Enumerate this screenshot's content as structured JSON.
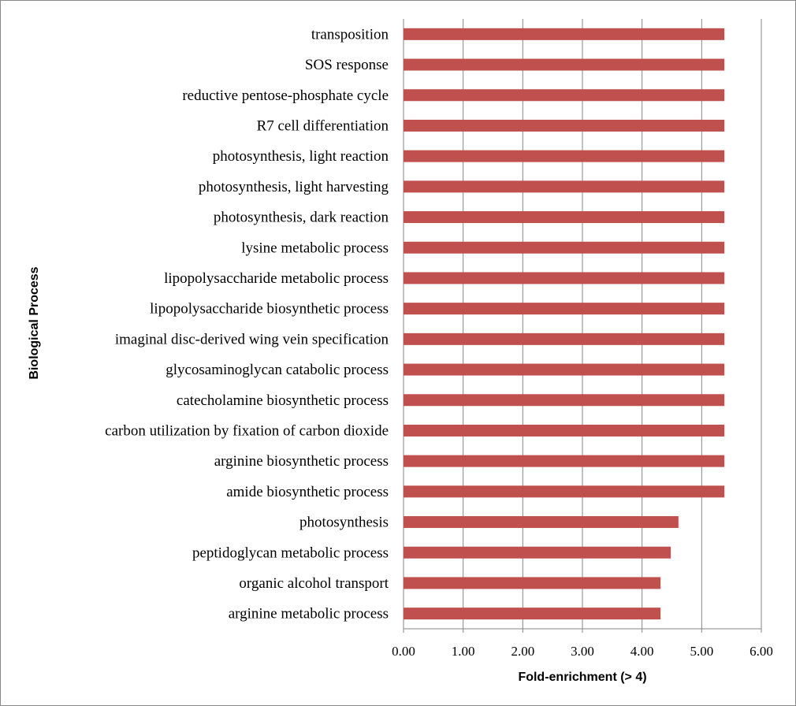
{
  "chart_data": {
    "type": "bar",
    "orientation": "horizontal",
    "categories": [
      "transposition",
      "SOS response",
      "reductive pentose-phosphate cycle",
      "R7 cell differentiation",
      "photosynthesis, light reaction",
      "photosynthesis, light harvesting",
      "photosynthesis, dark reaction",
      "lysine metabolic process",
      "lipopolysaccharide metabolic process",
      "lipopolysaccharide biosynthetic process",
      "imaginal disc-derived wing vein specification",
      "glycosaminoglycan catabolic process",
      "catecholamine biosynthetic process",
      "carbon utilization by fixation of carbon dioxide",
      "arginine biosynthetic process",
      "amide biosynthetic process",
      "photosynthesis",
      "peptidoglycan metabolic process",
      "organic alcohol transport",
      "arginine metabolic process"
    ],
    "values": [
      5.38,
      5.38,
      5.38,
      5.38,
      5.38,
      5.38,
      5.38,
      5.38,
      5.38,
      5.38,
      5.38,
      5.38,
      5.38,
      5.38,
      5.38,
      5.38,
      4.61,
      4.48,
      4.31,
      4.31
    ],
    "xlabel": "Fold-enrichment (> 4)",
    "ylabel": "Biological Process",
    "xlim": [
      0,
      6
    ],
    "xticks": [
      "0.00",
      "1.00",
      "2.00",
      "3.00",
      "4.00",
      "5.00",
      "6.00"
    ],
    "grid": "vertical",
    "legend": "none",
    "bar_color": "#C0504D",
    "grid_color": "#868686"
  }
}
